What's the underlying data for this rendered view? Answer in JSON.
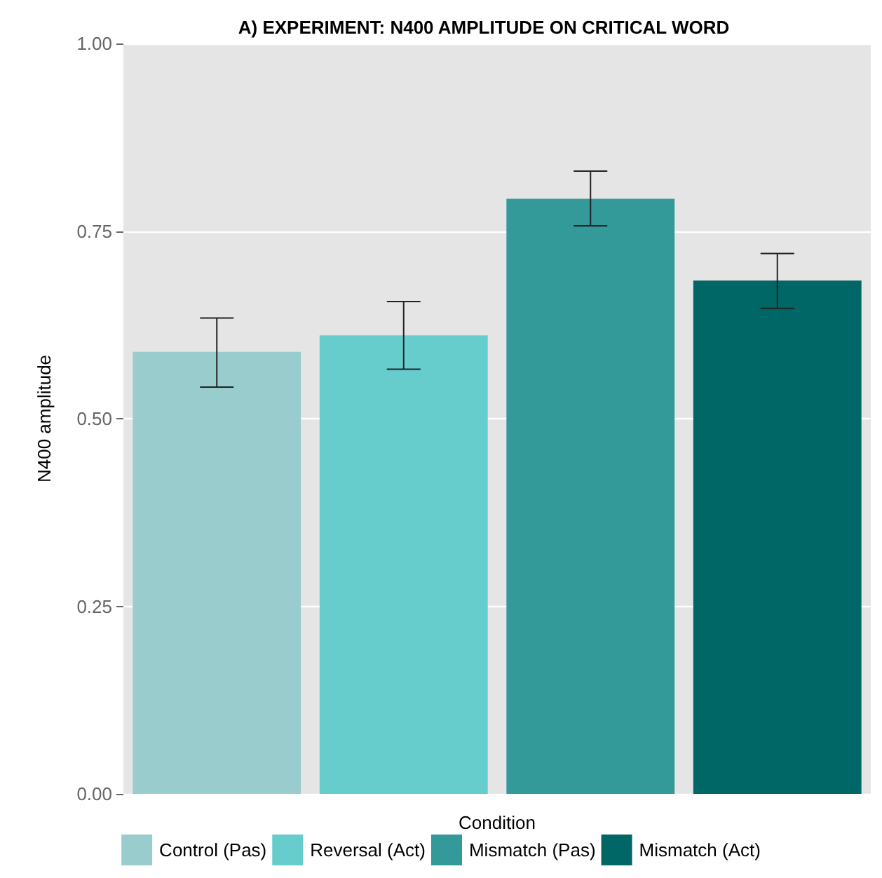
{
  "chart_data": {
    "type": "bar",
    "title": "A) EXPERIMENT: N400 AMPLITUDE ON CRITICAL WORD",
    "xlabel": "Condition",
    "ylabel": "N400 amplitude",
    "categories": [
      null,
      null,
      null,
      null
    ],
    "series": [
      {
        "name": "Control (Pas)",
        "color": "#99cccc",
        "values": [
          0.589,
          null,
          null,
          null
        ],
        "errors": [
          [
            0.542,
            0.634
          ],
          null,
          null,
          null
        ]
      },
      {
        "name": "Reversal (Act)",
        "color": "#66cccc",
        "values": [
          null,
          0.611,
          null,
          null
        ],
        "errors": [
          null,
          [
            0.566,
            0.656
          ],
          null,
          null
        ]
      },
      {
        "name": "Mismatch (Pas)",
        "color": "#339999",
        "values": [
          null,
          null,
          0.793,
          null
        ],
        "errors": [
          null,
          null,
          [
            0.757,
            0.83
          ],
          null
        ]
      },
      {
        "name": "Mismatch (Act)",
        "color": "#006666",
        "values": [
          null,
          null,
          null,
          0.684
        ],
        "errors": [
          null,
          null,
          null,
          [
            0.647,
            0.72
          ]
        ]
      }
    ],
    "ylim": [
      0,
      1
    ],
    "yticks": [
      {
        "value": 0,
        "label": "0.00"
      },
      {
        "value": 0.25,
        "label": "0.25"
      },
      {
        "value": 0.5,
        "label": "0.50"
      },
      {
        "value": 0.75,
        "label": "0.75"
      },
      {
        "value": 1,
        "label": "1.00"
      }
    ],
    "grid": "y",
    "legend": "bottom"
  }
}
